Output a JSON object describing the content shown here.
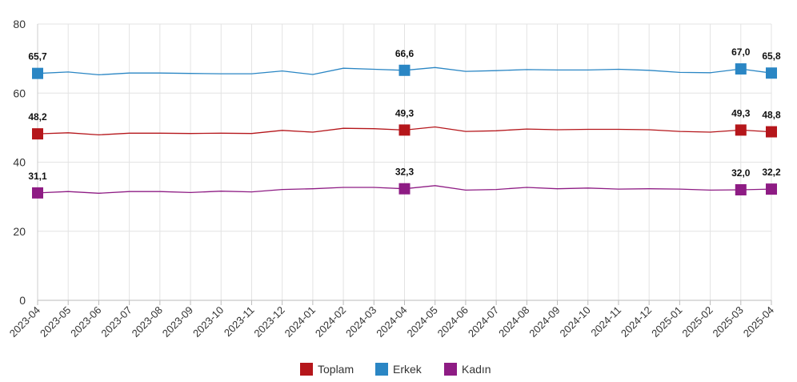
{
  "chart_data": {
    "type": "line",
    "categories": [
      "2023-04",
      "2023-05",
      "2023-06",
      "2023-07",
      "2023-08",
      "2023-09",
      "2023-10",
      "2023-11",
      "2023-12",
      "2024-01",
      "2024-02",
      "2024-03",
      "2024-04",
      "2024-05",
      "2024-06",
      "2024-07",
      "2024-08",
      "2024-09",
      "2024-10",
      "2024-11",
      "2024-12",
      "2025-01",
      "2025-02",
      "2025-03",
      "2025-04"
    ],
    "ylim": [
      0,
      80
    ],
    "yticks": [
      "0",
      "20",
      "40",
      "60",
      "80"
    ],
    "grid": true,
    "legend_position": "bottom-center",
    "series": [
      {
        "name": "Toplam",
        "color": "#b5161b",
        "values": [
          48.2,
          48.5,
          47.9,
          48.4,
          48.4,
          48.3,
          48.4,
          48.3,
          49.2,
          48.7,
          49.8,
          49.7,
          49.3,
          50.2,
          48.9,
          49.1,
          49.6,
          49.4,
          49.5,
          49.5,
          49.4,
          48.9,
          48.7,
          49.3,
          48.8
        ],
        "labels": [
          "48,2",
          "",
          "",
          "",
          "",
          "",
          "",
          "",
          "",
          "",
          "",
          "",
          "49,3",
          "",
          "",
          "",
          "",
          "",
          "",
          "",
          "",
          "",
          "",
          "49,3",
          "48,8"
        ]
      },
      {
        "name": "Erkek",
        "color": "#2a86c4",
        "values": [
          65.7,
          66.1,
          65.3,
          65.8,
          65.8,
          65.7,
          65.6,
          65.6,
          66.4,
          65.4,
          67.2,
          66.9,
          66.6,
          67.4,
          66.3,
          66.5,
          66.8,
          66.7,
          66.7,
          66.9,
          66.6,
          66.0,
          65.9,
          67.0,
          65.8
        ],
        "labels": [
          "65,7",
          "",
          "",
          "",
          "",
          "",
          "",
          "",
          "",
          "",
          "",
          "",
          "66,6",
          "",
          "",
          "",
          "",
          "",
          "",
          "",
          "",
          "",
          "",
          "67,0",
          "65,8"
        ]
      },
      {
        "name": "Kadın",
        "color": "#8e1c84",
        "values": [
          31.1,
          31.5,
          31.0,
          31.5,
          31.5,
          31.2,
          31.6,
          31.4,
          32.1,
          32.3,
          32.7,
          32.7,
          32.3,
          33.2,
          31.9,
          32.1,
          32.7,
          32.3,
          32.5,
          32.2,
          32.3,
          32.2,
          31.9,
          32.0,
          32.2
        ],
        "labels": [
          "31,1",
          "",
          "",
          "",
          "",
          "",
          "",
          "",
          "",
          "",
          "",
          "",
          "32,3",
          "",
          "",
          "",
          "",
          "",
          "",
          "",
          "",
          "",
          "",
          "32,0",
          "32,2"
        ]
      }
    ]
  }
}
